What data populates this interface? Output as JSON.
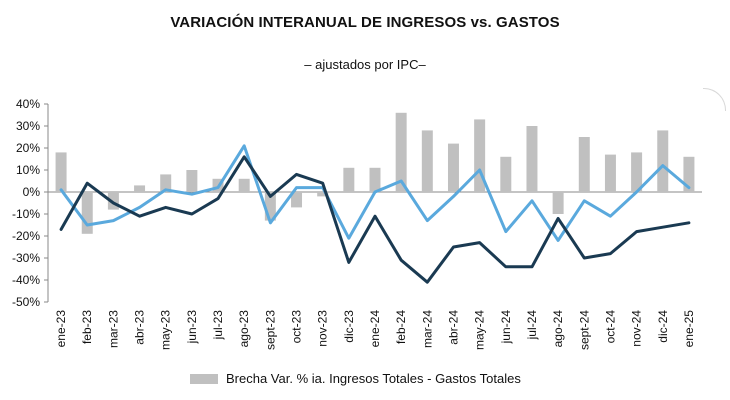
{
  "chart_data": {
    "type": "bar+line",
    "title": "VARIACIÓN INTERANUAL DE INGRESOS vs. GASTOS",
    "subtitle": "– ajustados por IPC–",
    "categories": [
      "ene-23",
      "feb-23",
      "mar-23",
      "abr-23",
      "may-23",
      "jun-23",
      "jul-23",
      "ago-23",
      "sept-23",
      "oct-23",
      "nov-23",
      "dic-23",
      "ene-24",
      "feb-24",
      "mar-24",
      "abr-24",
      "may-24",
      "jun-24",
      "jul-24",
      "ago-24",
      "sept-24",
      "oct-24",
      "nov-24",
      "dic-24",
      "ene-25"
    ],
    "ylim": [
      -50,
      40
    ],
    "yticks": [
      40,
      30,
      20,
      10,
      0,
      -10,
      -20,
      -30,
      -40,
      -50
    ],
    "ytick_labels": [
      "40%",
      "30%",
      "20%",
      "10%",
      "0%",
      "-10%",
      "-20%",
      "-30%",
      "-40%",
      "-50%"
    ],
    "series": [
      {
        "name": "Brecha Var. % ia. Ingresos Totales - Gastos Totales",
        "type": "bar",
        "color": "#c0c0c0",
        "values": [
          18,
          -19,
          -8,
          3,
          8,
          10,
          6,
          6,
          -13,
          -7,
          -2,
          11,
          11,
          36,
          28,
          22,
          33,
          16,
          30,
          -10,
          25,
          17,
          18,
          28,
          16
        ]
      },
      {
        "type": "line",
        "color": "#5aa9dd",
        "values": [
          1,
          -15,
          -13,
          -7,
          1,
          -1,
          2,
          21,
          -14,
          2,
          2,
          -21,
          0,
          5,
          -13,
          -2,
          10,
          -18,
          -4,
          -22,
          -4,
          -11,
          0,
          12,
          2
        ]
      },
      {
        "type": "line",
        "color": "#1a3a52",
        "values": [
          -17,
          4,
          -5,
          -11,
          -7,
          -10,
          -3,
          16,
          -2,
          8,
          4,
          -32,
          -11,
          -31,
          -41,
          -25,
          -23,
          -34,
          -34,
          -12,
          -30,
          -28,
          -18,
          -16,
          -14
        ]
      }
    ]
  },
  "legend": {
    "bar_label": "Brecha Var. % ia. Ingresos Totales - Gastos Totales"
  }
}
